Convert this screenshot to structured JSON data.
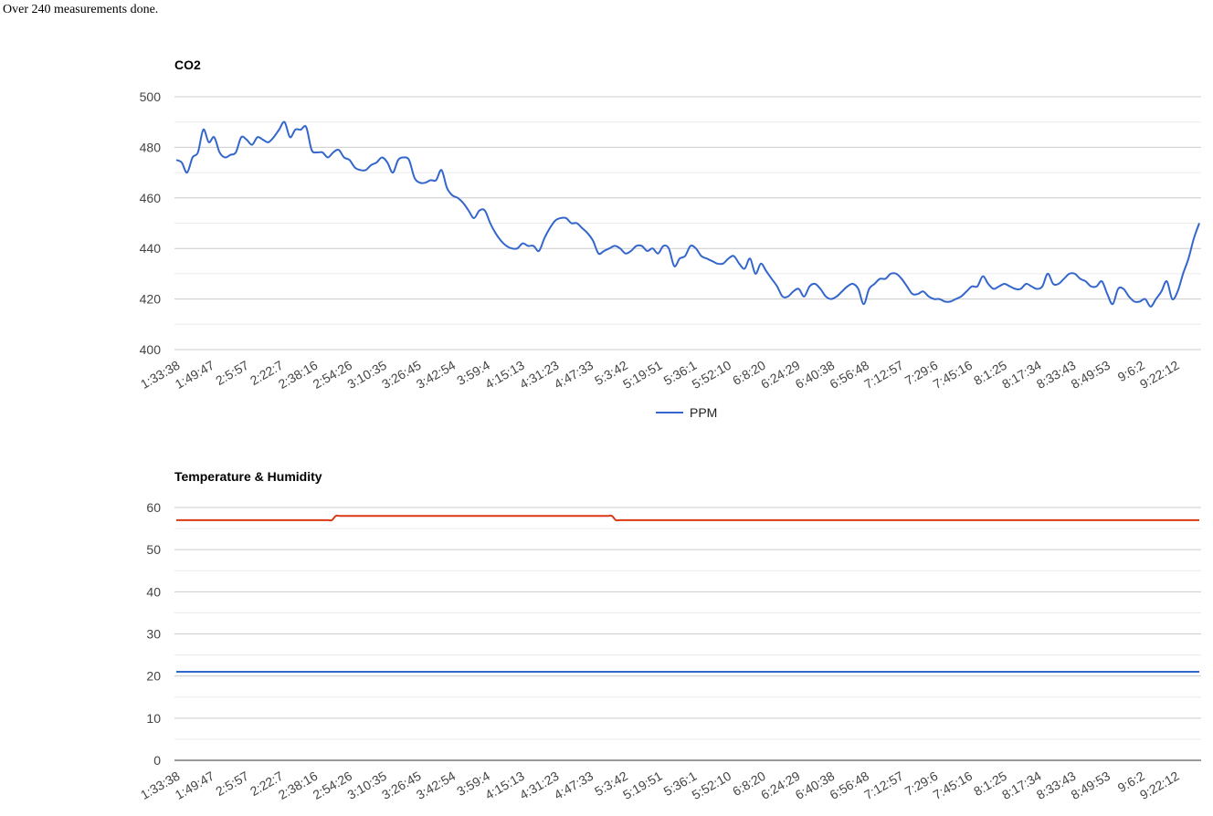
{
  "status_text": "Over 240 measurements done.",
  "x_tick_labels": [
    "1:33:38",
    "1:49:47",
    "2:5:57",
    "2:22:7",
    "2:38:16",
    "2:54:26",
    "3:10:35",
    "3:26:45",
    "3:42:54",
    "3:59:4",
    "4:15:13",
    "4:31:23",
    "4:47:33",
    "5:3:42",
    "5:19:51",
    "5:36:1",
    "5:52:10",
    "6:8:20",
    "6:24:29",
    "6:40:38",
    "6:56:48",
    "7:12:57",
    "7:29:6",
    "7:45:16",
    "8:1:25",
    "8:17:34",
    "8:33:43",
    "8:49:53",
    "9:6:2",
    "9:22:12"
  ],
  "chart_data": [
    {
      "type": "line",
      "title": "CO2",
      "ylim": [
        400,
        500
      ],
      "yticks": [
        400,
        420,
        440,
        460,
        480,
        500
      ],
      "legend_position": "bottom",
      "series": [
        {
          "name": "PPM",
          "color": "#3366cc",
          "values": [
            475,
            474,
            470,
            476,
            478,
            487,
            482,
            484,
            478,
            476,
            477,
            478,
            484,
            483,
            481,
            484,
            483,
            482,
            484,
            487,
            490,
            484,
            487,
            487,
            488,
            479,
            478,
            478,
            476,
            478,
            479,
            476,
            475,
            472,
            471,
            471,
            473,
            474,
            476,
            474,
            470,
            475,
            476,
            475,
            468,
            466,
            466,
            467,
            467,
            471,
            464,
            461,
            460,
            458,
            455,
            452,
            455,
            455,
            450,
            446,
            443,
            441,
            440,
            440,
            442,
            441,
            441,
            439,
            444,
            448,
            451,
            452,
            452,
            450,
            450,
            448,
            446,
            443,
            438,
            439,
            440,
            441,
            440,
            438,
            439,
            441,
            441,
            439,
            440,
            438,
            441,
            440,
            433,
            436,
            437,
            441,
            440,
            437,
            436,
            435,
            434,
            434,
            436,
            437,
            434,
            432,
            436,
            430,
            434,
            431,
            428,
            425,
            421,
            421,
            423,
            424,
            421,
            425,
            426,
            424,
            421,
            420,
            421,
            423,
            425,
            426,
            424,
            418,
            424,
            426,
            428,
            428,
            430,
            430,
            428,
            425,
            422,
            422,
            423,
            421,
            420,
            420,
            419,
            419,
            420,
            421,
            423,
            425,
            425,
            429,
            426,
            424,
            425,
            426,
            425,
            424,
            424,
            426,
            425,
            424,
            425,
            430,
            426,
            426,
            428,
            430,
            430,
            428,
            427,
            425,
            425,
            427,
            422,
            418,
            424,
            424,
            421,
            419,
            419,
            420,
            417,
            420,
            423,
            427,
            420,
            423,
            430,
            436,
            444,
            450
          ]
        }
      ]
    },
    {
      "type": "line",
      "title": "Temperature & Humidity",
      "ylim": [
        0,
        60
      ],
      "yticks": [
        0,
        10,
        20,
        30,
        40,
        50,
        60
      ],
      "series": [
        {
          "color": "#dc3912",
          "values": [
            57,
            57,
            57,
            57,
            57,
            57,
            57,
            57,
            57,
            57,
            57,
            57,
            57,
            57,
            57,
            57,
            57,
            57,
            57,
            57,
            57,
            57,
            57,
            57,
            57,
            57,
            57,
            57,
            57,
            57,
            57,
            57,
            57,
            57,
            57,
            57,
            57,
            57,
            57,
            57,
            57,
            58,
            58,
            58,
            58,
            58,
            58,
            58,
            58,
            58,
            58,
            58,
            58,
            58,
            58,
            58,
            58,
            58,
            58,
            58,
            58,
            58,
            58,
            58,
            58,
            58,
            58,
            58,
            58,
            58,
            58,
            58,
            58,
            58,
            58,
            58,
            58,
            58,
            58,
            58,
            58,
            58,
            58,
            58,
            58,
            58,
            58,
            58,
            58,
            58,
            58,
            58,
            58,
            58,
            58,
            58,
            58,
            58,
            58,
            58,
            58,
            58,
            58,
            58,
            58,
            58,
            58,
            58,
            58,
            58,
            58,
            58,
            58,
            57,
            57,
            57,
            57,
            57,
            57,
            57,
            57,
            57,
            57,
            57,
            57,
            57,
            57,
            57,
            57,
            57,
            57,
            57,
            57,
            57,
            57,
            57,
            57,
            57,
            57,
            57,
            57,
            57,
            57,
            57,
            57,
            57,
            57,
            57,
            57,
            57,
            57,
            57,
            57,
            57,
            57,
            57,
            57,
            57,
            57,
            57,
            57,
            57,
            57,
            57,
            57,
            57,
            57,
            57,
            57,
            57,
            57,
            57,
            57,
            57,
            57,
            57,
            57,
            57,
            57,
            57,
            57,
            57,
            57,
            57,
            57,
            57,
            57,
            57,
            57,
            57,
            57,
            57,
            57,
            57,
            57,
            57,
            57,
            57,
            57,
            57,
            57,
            57,
            57,
            57,
            57,
            57,
            57,
            57,
            57,
            57,
            57,
            57,
            57,
            57,
            57,
            57,
            57,
            57,
            57,
            57,
            57,
            57,
            57,
            57,
            57,
            57,
            57,
            57,
            57,
            57,
            57,
            57,
            57,
            57,
            57,
            57,
            57,
            57,
            57,
            57,
            57,
            57,
            57,
            57,
            57,
            57,
            57,
            57,
            57,
            57,
            57,
            57,
            57,
            57,
            57,
            57,
            57,
            57,
            57,
            57,
            57,
            57,
            57,
            57
          ]
        },
        {
          "color": "#3366cc",
          "values": [
            21,
            21,
            21,
            21,
            21,
            21,
            21,
            21,
            21,
            21,
            21,
            21,
            21,
            21,
            21,
            21,
            21,
            21,
            21,
            21,
            21,
            21,
            21,
            21,
            21,
            21,
            21,
            21,
            21,
            21,
            21,
            21,
            21,
            21,
            21,
            21,
            21,
            21,
            21,
            21,
            21,
            21,
            21,
            21,
            21,
            21,
            21,
            21,
            21,
            21,
            21,
            21,
            21,
            21,
            21,
            21,
            21,
            21,
            21,
            21,
            21,
            21,
            21,
            21,
            21,
            21,
            21,
            21,
            21,
            21,
            21,
            21,
            21,
            21,
            21,
            21,
            21,
            21,
            21,
            21,
            21,
            21,
            21,
            21,
            21,
            21,
            21,
            21,
            21,
            21,
            21,
            21,
            21,
            21,
            21,
            21,
            21,
            21,
            21,
            21,
            21,
            21,
            21,
            21,
            21,
            21,
            21,
            21,
            21,
            21,
            21,
            21,
            21,
            21,
            21,
            21,
            21,
            21,
            21,
            21,
            21,
            21,
            21,
            21,
            21,
            21,
            21,
            21,
            21,
            21,
            21,
            21,
            21,
            21,
            21,
            21,
            21,
            21,
            21,
            21,
            21,
            21,
            21,
            21,
            21,
            21,
            21,
            21,
            21,
            21,
            21,
            21,
            21,
            21,
            21,
            21,
            21,
            21,
            21,
            21,
            21,
            21,
            21,
            21,
            21,
            21,
            21,
            21,
            21,
            21,
            21,
            21,
            21,
            21,
            21,
            21,
            21,
            21,
            21,
            21,
            21,
            21,
            21,
            21,
            21,
            21,
            21,
            21,
            21,
            21,
            21,
            21,
            21,
            21,
            21,
            21,
            21,
            21,
            21,
            21,
            21,
            21,
            21,
            21,
            21,
            21,
            21,
            21,
            21,
            21,
            21,
            21,
            21,
            21,
            21,
            21,
            21,
            21,
            21,
            21,
            21,
            21,
            21,
            21,
            21,
            21,
            21,
            21,
            21,
            21,
            21,
            21,
            21,
            21,
            21,
            21,
            21,
            21,
            21,
            21,
            21,
            21,
            21,
            21,
            21,
            21,
            21,
            21,
            21,
            21,
            21,
            21,
            21,
            21,
            21,
            21,
            21,
            21,
            21,
            21
          ]
        }
      ]
    }
  ]
}
